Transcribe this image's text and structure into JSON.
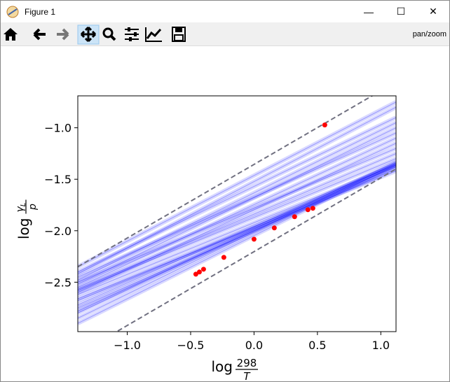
{
  "window": {
    "title": "Figure 1",
    "mode": "pan/zoom"
  },
  "chart_data": {
    "type": "scatter",
    "xlabel": {
      "prefix": "log",
      "numerator": "298",
      "denominator": "T"
    },
    "ylabel": {
      "prefix": "log",
      "numerator": "γ",
      "subscript": "L",
      "denominator": "p"
    },
    "xlim": [
      -1.39,
      1.12
    ],
    "ylim": [
      -2.98,
      -0.69
    ],
    "xticks": [
      {
        "value": -1,
        "label": "−1.0"
      },
      {
        "value": -0.5,
        "label": "−0.5"
      },
      {
        "value": 0,
        "label": "0.0"
      },
      0.5,
      {
        "value": 1,
        "label": "1.0"
      }
    ],
    "yticks": [
      {
        "value": -1,
        "label": "−1.0"
      },
      {
        "value": -1.5,
        "label": "−1.5"
      },
      {
        "value": -2,
        "label": "−2.0"
      },
      {
        "value": -2.5,
        "label": "−2.5"
      }
    ],
    "points": {
      "color": "#ff0000",
      "x": [
        -0.459,
        -0.431,
        -0.398,
        -0.238,
        0.0,
        0.16,
        0.32,
        0.425,
        0.464,
        0.558
      ],
      "y": [
        -2.422,
        -2.401,
        -2.374,
        -2.259,
        -2.082,
        -1.973,
        -1.864,
        -1.796,
        -1.782,
        -0.973
      ]
    },
    "bounds": {
      "color": "#707080",
      "x": [
        -1.39,
        1.12
      ],
      "lines": [
        [
          -2.35,
          -0.555
        ],
        [
          -3.2,
          -1.4
        ]
      ]
    },
    "samples": {
      "color": "#0000ff",
      "alpha": 0.15,
      "x": [
        -1.39,
        1.12
      ],
      "lines": [
        [
          -2.62,
          -1.36
        ],
        [
          -2.68,
          -1.38
        ],
        [
          -2.72,
          -1.35
        ],
        [
          -2.78,
          -1.37
        ],
        [
          -2.85,
          -1.34
        ],
        [
          -2.9,
          -1.36
        ],
        [
          -2.66,
          -1.42
        ],
        [
          -2.58,
          -1.3
        ],
        [
          -2.75,
          -1.4
        ],
        [
          -2.8,
          -1.33
        ],
        [
          -2.5,
          -1.2
        ],
        [
          -2.45,
          -1.05
        ],
        [
          -2.4,
          -0.9
        ],
        [
          -2.55,
          -1.1
        ],
        [
          -2.42,
          -0.8
        ],
        [
          -2.48,
          -0.95
        ],
        [
          -2.6,
          -1.15
        ],
        [
          -2.35,
          -0.75
        ],
        [
          -2.52,
          -1.0
        ],
        [
          -2.57,
          -1.25
        ]
      ]
    }
  }
}
